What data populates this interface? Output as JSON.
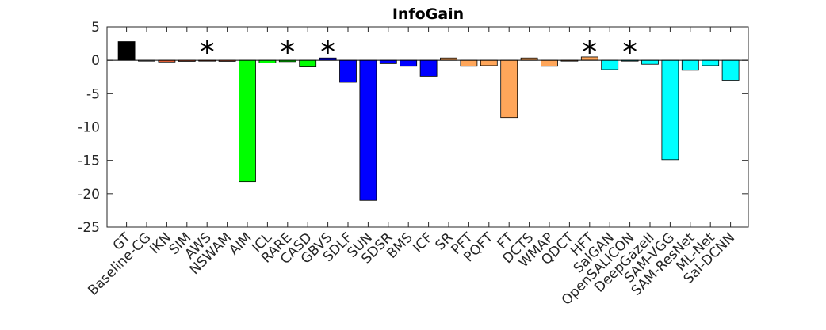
{
  "chart_data": {
    "type": "bar",
    "title": "InfoGain",
    "xlabel": "",
    "ylabel": "",
    "ylim": [
      -25,
      5
    ],
    "yticks": [
      5,
      0,
      -5,
      -10,
      -15,
      -20,
      -25
    ],
    "grid": false,
    "categories": [
      "GT",
      "Baseline-CG",
      "IKN",
      "SIM",
      "AWS",
      "NSWAM",
      "AIM",
      "ICL",
      "RARE",
      "CASD",
      "GBVS",
      "SDLF",
      "SUN",
      "SDSR",
      "BMS",
      "ICF",
      "SR",
      "PFT",
      "PQFT",
      "FT",
      "DCTS",
      "WMAP",
      "QDCT",
      "HFT",
      "SalGAN",
      "OpenSALICON",
      "DeepGazeII",
      "SAM-VGG",
      "SAM-ResNet",
      "ML-Net",
      "Sal-DCNN"
    ],
    "values": [
      2.8,
      0.0,
      -0.25,
      -0.15,
      -0.05,
      -0.15,
      -18.2,
      -0.4,
      -0.2,
      -1.0,
      0.35,
      -3.3,
      -21.0,
      -0.5,
      -0.9,
      -2.4,
      0.35,
      -0.9,
      -0.8,
      -8.6,
      0.35,
      -0.9,
      -0.1,
      0.5,
      -1.4,
      -0.05,
      -0.6,
      -14.9,
      -1.5,
      -0.8,
      -3.0
    ],
    "colors": [
      "#000000",
      "#ffffff",
      "#ff6a3b",
      "#ff6a3b",
      "#ff6a3b",
      "#ff6a3b",
      "#00ff00",
      "#00ff00",
      "#00ff00",
      "#00ff00",
      "#0000ff",
      "#0000ff",
      "#0000ff",
      "#0000ff",
      "#0000ff",
      "#0000ff",
      "#ffa65a",
      "#ffa65a",
      "#ffa65a",
      "#ffa65a",
      "#ffa65a",
      "#ffa65a",
      "#ffa65a",
      "#ffa65a",
      "#00ffff",
      "#00ffff",
      "#00ffff",
      "#00ffff",
      "#00ffff",
      "#00ffff",
      "#00ffff"
    ],
    "annotations": [
      {
        "category": "AWS",
        "text": "*"
      },
      {
        "category": "RARE",
        "text": "*"
      },
      {
        "category": "GBVS",
        "text": "*"
      },
      {
        "category": "HFT",
        "text": "*"
      },
      {
        "category": "OpenSALICON",
        "text": "*"
      }
    ]
  }
}
